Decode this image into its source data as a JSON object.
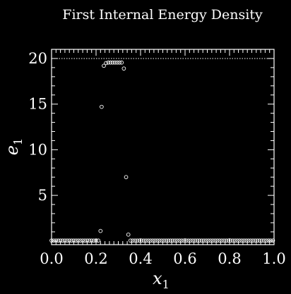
{
  "chart_data": {
    "type": "scatter",
    "title": "First Internal Energy Density",
    "xlabel": {
      "main": "x",
      "sub": "1"
    },
    "ylabel": {
      "main": "e",
      "sub": "1"
    },
    "xlim": [
      0.0,
      1.0
    ],
    "ylim": [
      -0.4,
      21.0
    ],
    "xticks": [
      {
        "value": 0.0,
        "label": "0.0"
      },
      {
        "value": 0.2,
        "label": "0.2"
      },
      {
        "value": 0.4,
        "label": "0.4"
      },
      {
        "value": 0.6,
        "label": "0.6"
      },
      {
        "value": 0.8,
        "label": "0.8"
      },
      {
        "value": 1.0,
        "label": "1.0"
      }
    ],
    "yticks": [
      {
        "value": 5,
        "label": "5"
      },
      {
        "value": 10,
        "label": "10"
      },
      {
        "value": 15,
        "label": "15"
      },
      {
        "value": 20,
        "label": "20"
      }
    ],
    "reference_line": {
      "y": 20.0,
      "style": "dotted"
    },
    "series": [
      {
        "marker": "open-circle",
        "color": "#ffffff",
        "segments": [
          {
            "x_start": 0.0,
            "x_end": 0.21,
            "step": 0.01,
            "y": 0.05
          },
          {
            "x_start": 0.355,
            "x_end": 1.0,
            "step": 0.01,
            "y": 0.05
          }
        ],
        "points": [
          {
            "x": 0.22,
            "y": 1.1
          },
          {
            "x": 0.225,
            "y": 14.7
          },
          {
            "x": 0.235,
            "y": 19.2
          },
          {
            "x": 0.245,
            "y": 19.5
          },
          {
            "x": 0.255,
            "y": 19.55
          },
          {
            "x": 0.265,
            "y": 19.55
          },
          {
            "x": 0.275,
            "y": 19.55
          },
          {
            "x": 0.285,
            "y": 19.55
          },
          {
            "x": 0.295,
            "y": 19.55
          },
          {
            "x": 0.305,
            "y": 19.55
          },
          {
            "x": 0.315,
            "y": 19.55
          },
          {
            "x": 0.325,
            "y": 18.9
          },
          {
            "x": 0.335,
            "y": 7.0
          },
          {
            "x": 0.345,
            "y": 0.7
          }
        ]
      }
    ],
    "grid": false,
    "legend": "none"
  }
}
